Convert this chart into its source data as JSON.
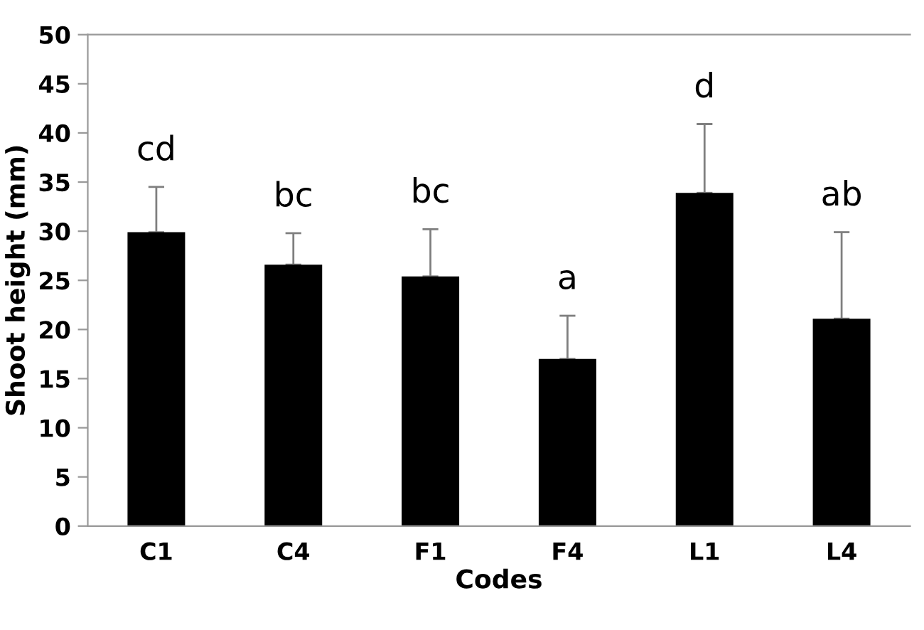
{
  "chart_data": {
    "type": "bar",
    "xlabel": "Codes",
    "ylabel": "Shoot height (mm)",
    "categories": [
      "C1",
      "C4",
      "F1",
      "F4",
      "L1",
      "L4"
    ],
    "values": [
      29.9,
      26.6,
      25.4,
      17.0,
      33.9,
      21.1
    ],
    "errors": [
      [
        29.9,
        34.5
      ],
      [
        26.6,
        29.8
      ],
      [
        25.4,
        30.2
      ],
      [
        17.0,
        21.4
      ],
      [
        33.9,
        40.9
      ],
      [
        21.1,
        29.9
      ]
    ],
    "color": "#000000",
    "ylim": [
      0,
      50
    ],
    "yticks": [
      0,
      5,
      10,
      15,
      20,
      25,
      30,
      35,
      40,
      45,
      50
    ],
    "grid": false,
    "legend": false,
    "annotations": [
      "cd",
      "bc",
      "bc",
      "a",
      "d",
      "ab"
    ]
  }
}
